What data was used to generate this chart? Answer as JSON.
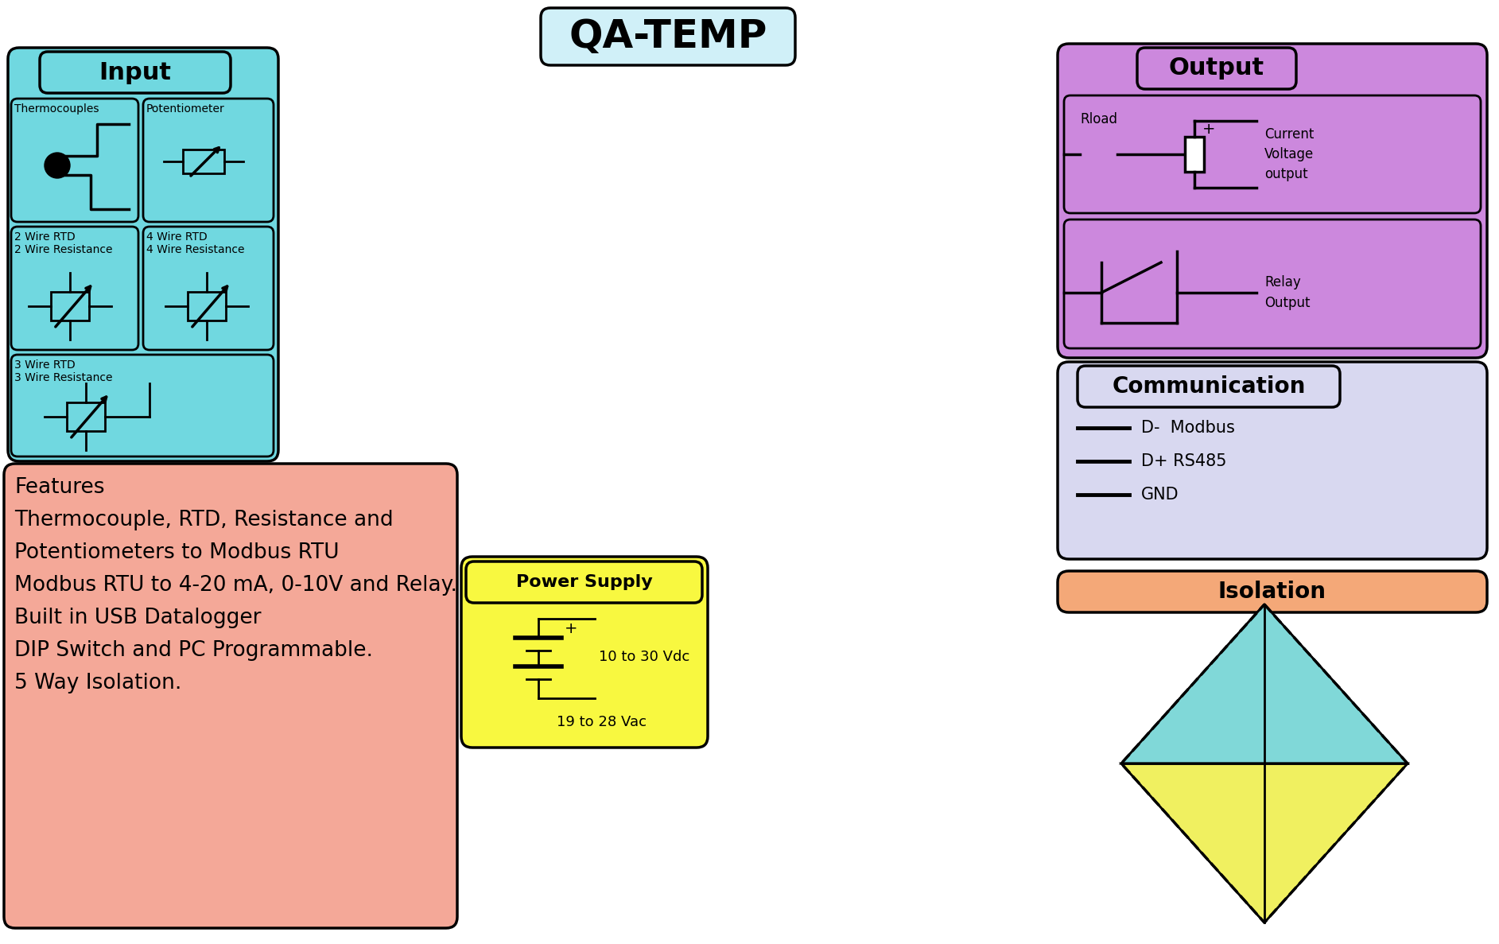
{
  "title": "QA-TEMP",
  "title_fontsize": 36,
  "title_bg": "#d0f0f8",
  "bg_color": "#ffffff",
  "input_bg": "#70d8e0",
  "input_label": "Input",
  "tc_label": "Thermocouples",
  "pot_label": "Potentiometer",
  "rtd2_label": "2 Wire RTD\n2 Wire Resistance",
  "rtd4_label": "4 Wire RTD\n4 Wire Resistance",
  "rtd3_label": "3 Wire RTD\n3 Wire Resistance",
  "output_bg": "#cc88dd",
  "output_label": "Output",
  "cv_label": "Current\nVoltage\noutput",
  "relay_label": "Relay\nOutput",
  "rload_label": "Rload",
  "comm_bg": "#d8d8f0",
  "comm_label": "Communication",
  "comm_d_minus": "D-  Modbus",
  "comm_d_plus": "D+ RS485",
  "comm_gnd": "GND",
  "power_bg": "#f8f840",
  "power_label": "Power Supply",
  "power_text1": "10 to 30 Vdc",
  "power_text2": "19 to 28 Vac",
  "isolation_bg": "#f4a878",
  "isolation_label": "Isolation",
  "iso_tri_top": "#80d8d8",
  "iso_tri_right": "#d8b8e8",
  "iso_tri_bottom": "#f0f060",
  "iso_tri_left": "#d8b8e8",
  "features_bg": "#f4a898",
  "features_text": "Features\nThermocouple, RTD, Resistance and\nPotentiometers to Modbus RTU\nModbus RTU to 4-20 mA, 0-10V and Relay.\nBuilt in USB Datalogger\nDIP Switch and PC Programmable.\n5 Way Isolation."
}
